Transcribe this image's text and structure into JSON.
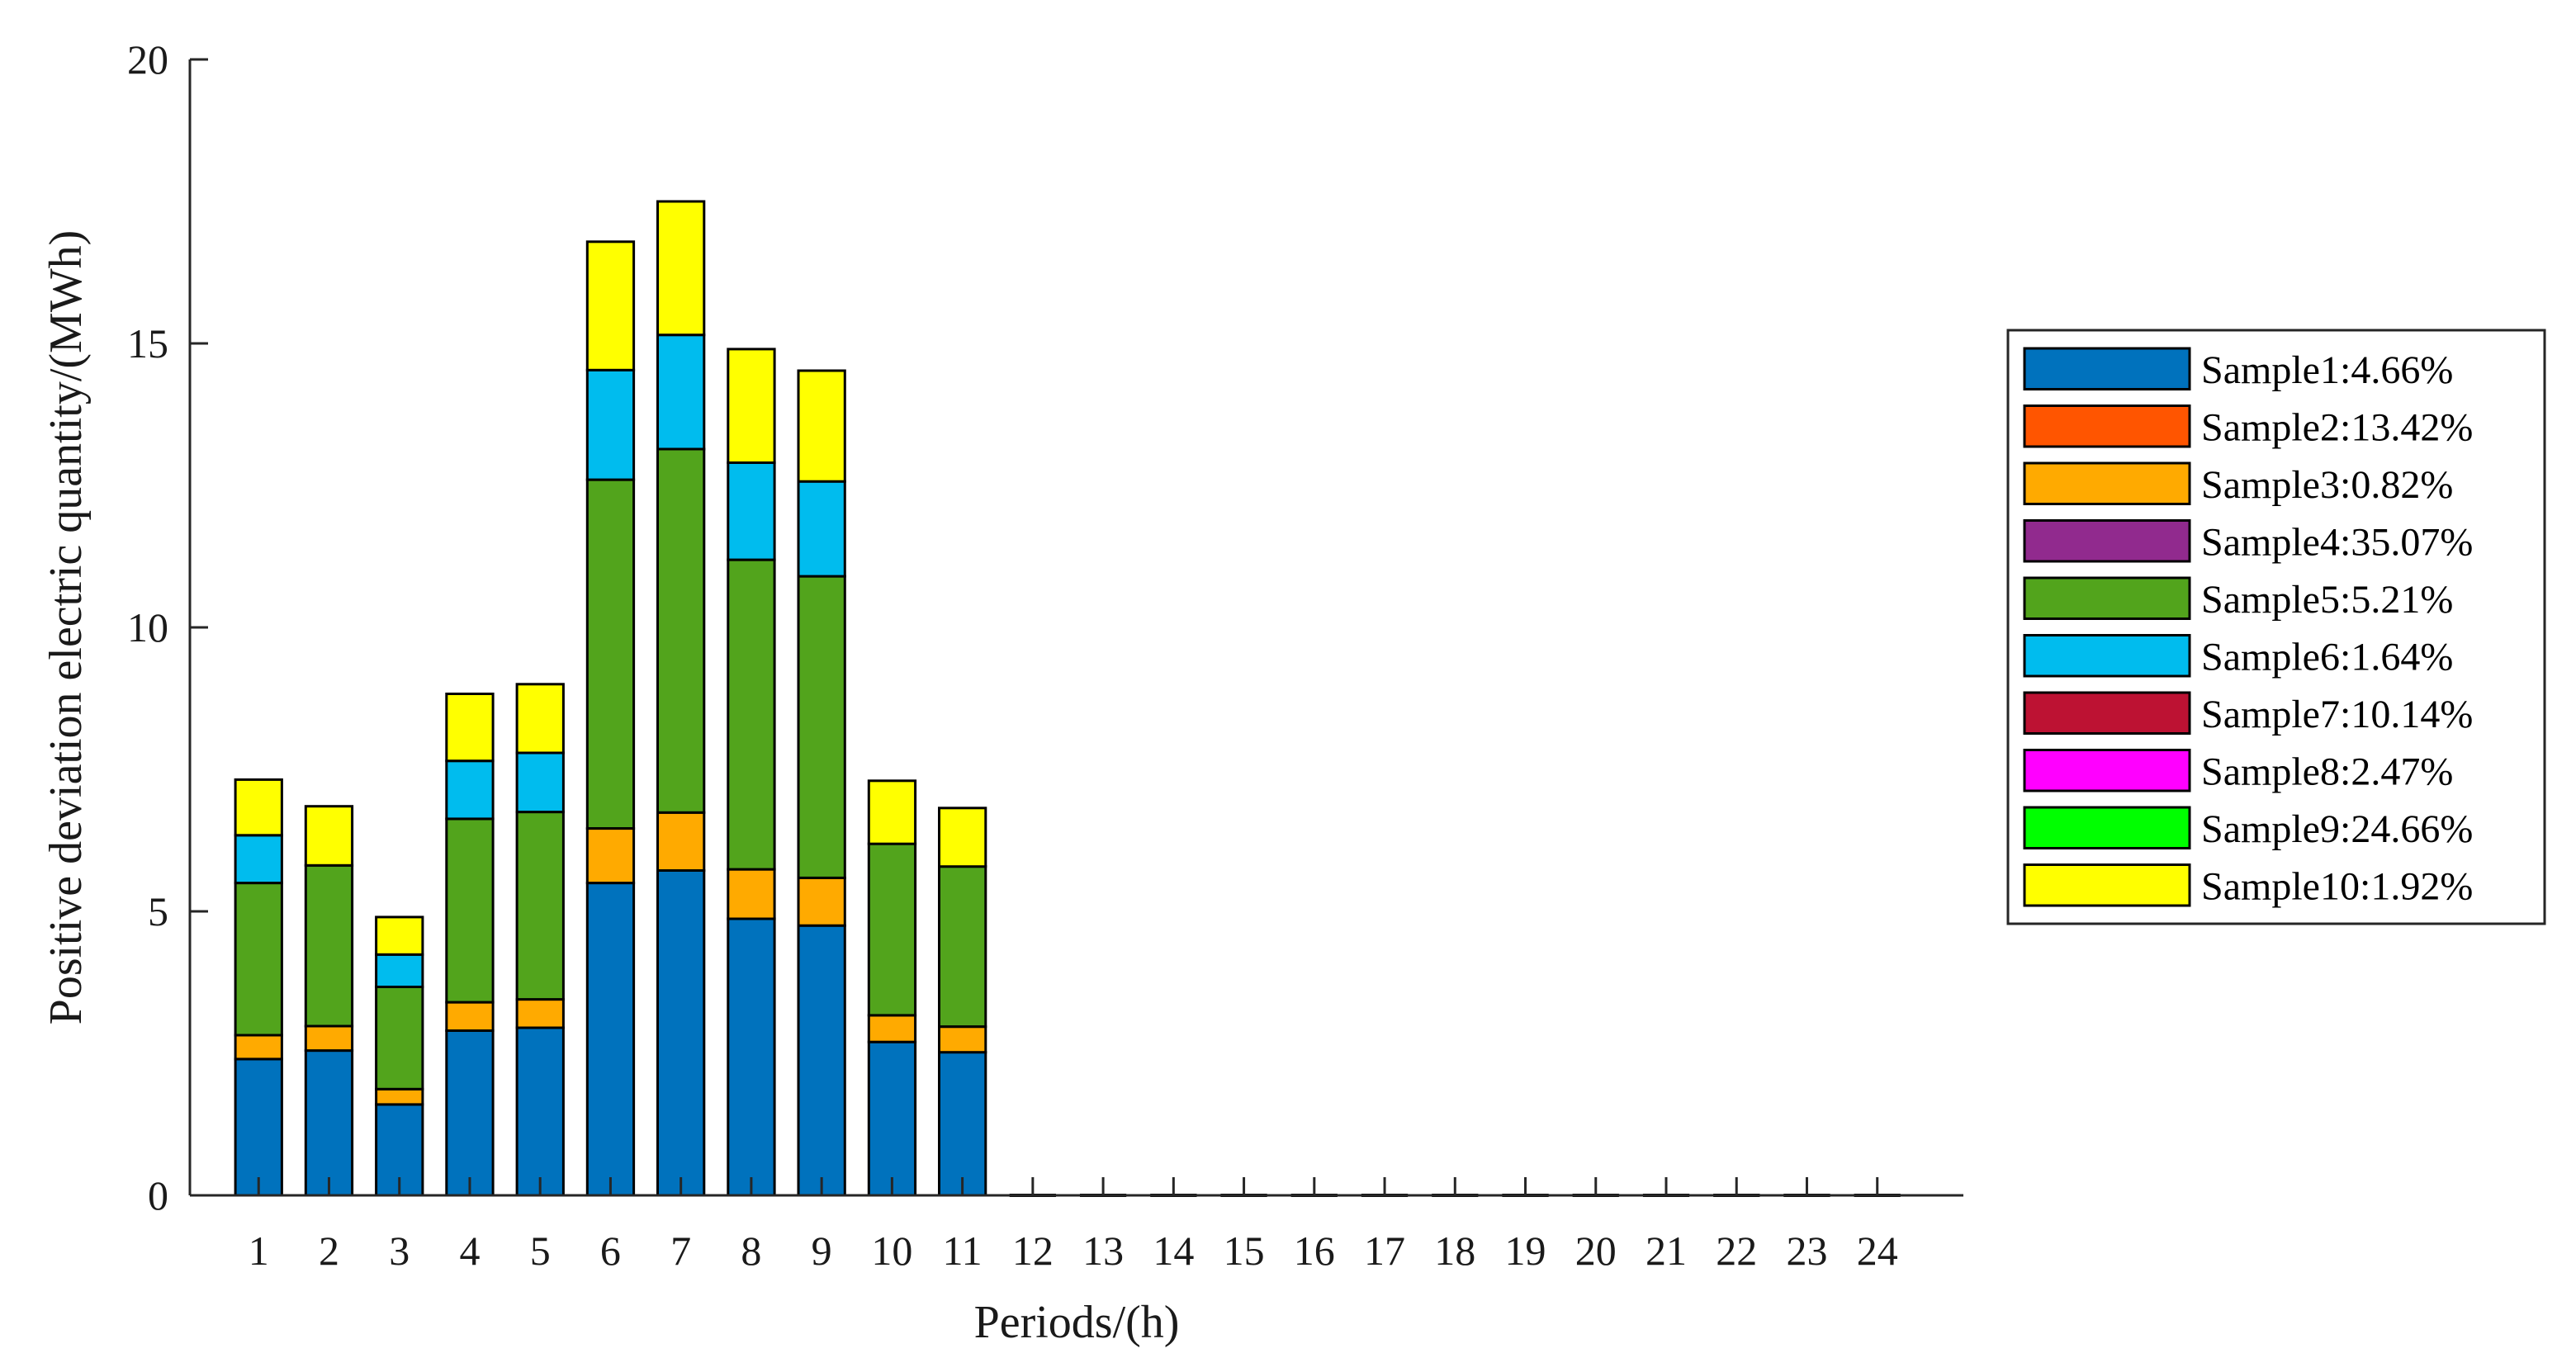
{
  "chart_data": {
    "type": "bar",
    "stacked": true,
    "title": "",
    "xlabel": "Periods/(h)",
    "ylabel": "Positive deviation electric quantity/(MWh)",
    "ylim": [
      0,
      20
    ],
    "yticks": [
      0,
      5,
      10,
      15,
      20
    ],
    "grid": false,
    "legend_position": "right",
    "categories": [
      "1",
      "2",
      "3",
      "4",
      "5",
      "6",
      "7",
      "8",
      "9",
      "10",
      "11",
      "12",
      "13",
      "14",
      "15",
      "16",
      "17",
      "18",
      "19",
      "20",
      "21",
      "22",
      "23",
      "24"
    ],
    "series": [
      {
        "name": "Sample1:4.66%",
        "color": "#0072BD",
        "values": [
          2.4,
          2.55,
          1.6,
          2.9,
          2.95,
          5.5,
          5.72,
          4.87,
          4.75,
          2.7,
          2.52,
          0,
          0,
          0,
          0,
          0,
          0,
          0,
          0,
          0,
          0,
          0,
          0,
          0
        ]
      },
      {
        "name": "Sample2:13.42%",
        "color": "#FF5500",
        "values": [
          0,
          0,
          0,
          0,
          0,
          0,
          0,
          0,
          0,
          0,
          0,
          0,
          0,
          0,
          0,
          0,
          0,
          0,
          0,
          0,
          0,
          0,
          0,
          0
        ]
      },
      {
        "name": "Sample3:0.82%",
        "color": "#FFAA00",
        "values": [
          0.42,
          0.43,
          0.27,
          0.5,
          0.5,
          0.96,
          1.02,
          0.87,
          0.84,
          0.47,
          0.45,
          0,
          0,
          0,
          0,
          0,
          0,
          0,
          0,
          0,
          0,
          0,
          0,
          0
        ]
      },
      {
        "name": "Sample4:35.07%",
        "color": "#912A8E",
        "values": [
          0,
          0,
          0,
          0,
          0,
          0,
          0,
          0,
          0,
          0,
          0,
          0,
          0,
          0,
          0,
          0,
          0,
          0,
          0,
          0,
          0,
          0,
          0,
          0
        ]
      },
      {
        "name": "Sample5:5.21%",
        "color": "#52A41C",
        "values": [
          2.68,
          2.83,
          1.8,
          3.23,
          3.3,
          6.14,
          6.4,
          5.45,
          5.31,
          3.02,
          2.82,
          0,
          0,
          0,
          0,
          0,
          0,
          0,
          0,
          0,
          0,
          0,
          0,
          0
        ]
      },
      {
        "name": "Sample6:1.64%",
        "color": "#00BCEE",
        "values": [
          0.84,
          0.0,
          0.57,
          1.02,
          1.04,
          1.93,
          2.01,
          1.71,
          1.67,
          0.0,
          0.0,
          0,
          0,
          0,
          0,
          0,
          0,
          0,
          0,
          0,
          0,
          0,
          0,
          0
        ]
      },
      {
        "name": "Sample7:10.14%",
        "color": "#BD1233",
        "values": [
          0,
          0,
          0,
          0,
          0,
          0,
          0,
          0,
          0,
          0,
          0,
          0,
          0,
          0,
          0,
          0,
          0,
          0,
          0,
          0,
          0,
          0,
          0,
          0
        ]
      },
      {
        "name": "Sample8:2.47%",
        "color": "#FF00FF",
        "values": [
          0,
          0,
          0,
          0,
          0,
          0,
          0,
          0,
          0,
          0,
          0,
          0,
          0,
          0,
          0,
          0,
          0,
          0,
          0,
          0,
          0,
          0,
          0,
          0
        ]
      },
      {
        "name": "Sample9:24.66%",
        "color": "#00FF00",
        "values": [
          0,
          0,
          0,
          0,
          0,
          0,
          0,
          0,
          0,
          0,
          0,
          0,
          0,
          0,
          0,
          0,
          0,
          0,
          0,
          0,
          0,
          0,
          0,
          0
        ]
      },
      {
        "name": "Sample10:1.92%",
        "color": "#FFFF00",
        "values": [
          0.98,
          1.04,
          0.66,
          1.18,
          1.21,
          2.26,
          2.35,
          2.0,
          1.95,
          1.11,
          1.03,
          0,
          0,
          0,
          0,
          0,
          0,
          0,
          0,
          0,
          0,
          0,
          0,
          0
        ]
      }
    ]
  }
}
